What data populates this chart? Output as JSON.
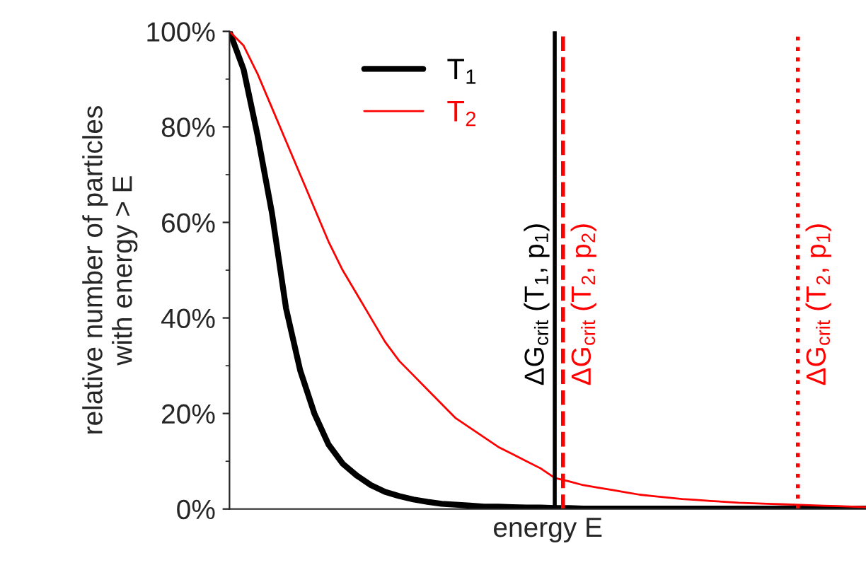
{
  "chart_data": {
    "type": "line",
    "xlabel": "energy E",
    "ylabel": "relative number of particles\nwith energy > E",
    "categories": [
      null,
      null,
      null,
      null,
      null,
      null,
      null,
      null,
      null,
      null,
      null,
      null,
      null,
      null,
      null,
      null,
      null,
      null,
      null,
      null,
      null,
      null,
      null,
      null,
      null,
      null,
      null,
      null,
      null,
      null,
      null,
      null,
      null,
      null,
      null,
      null,
      null,
      null,
      null,
      null,
      null,
      null,
      null,
      null,
      null,
      null
    ],
    "series": [
      {
        "name": "T$_{1}$",
        "color": "#000000",
        "values": [
          100,
          92,
          78,
          62,
          42,
          29,
          20,
          13.5,
          9.5,
          7,
          5,
          3.6,
          2.7,
          2,
          1.5,
          1.1,
          0.9,
          0.7,
          0.5,
          0.5,
          0.4,
          0.3,
          0.3,
          0.2,
          0.2,
          0.1,
          0.1,
          0.1,
          0.1,
          0.1,
          0.1,
          0.1,
          0.1,
          0.1,
          0.1,
          0.1,
          0.1,
          0.1,
          0.1,
          0.1,
          0.1,
          0.1,
          0.1,
          0.1,
          0.1,
          0.1
        ]
      },
      {
        "name": "T$_{2}$",
        "color": "#ff0000",
        "values": [
          100,
          97,
          91,
          84,
          77,
          70,
          63,
          56,
          50,
          45,
          40,
          35,
          31,
          28,
          25,
          22,
          19,
          17,
          15,
          13,
          11.5,
          10,
          8.5,
          6.5,
          5.8,
          5,
          4.5,
          4,
          3.5,
          3,
          2.7,
          2.4,
          2.1,
          1.9,
          1.7,
          1.5,
          1.3,
          1.2,
          1.1,
          1,
          0.9,
          0.8,
          0.7,
          0.6,
          0.5,
          0.4
        ]
      }
    ],
    "ylim": [
      0,
      100
    ],
    "yticks": [
      {
        "value": 0,
        "label": "0%"
      },
      {
        "value": 20,
        "label": "20%"
      },
      {
        "value": 40,
        "label": "40%"
      },
      {
        "value": 60,
        "label": "60%"
      },
      {
        "value": 80,
        "label": "80%"
      },
      {
        "value": 100,
        "label": "100%"
      }
    ],
    "annotations": [
      "ΔG$_{crit}$ (T$_{1}$, p$_{1}$)",
      "ΔG$_{crit}$ (T$_{2}$, p$_{2}$)",
      "ΔG$_{crit}$ (T$_{2}$, p$_{1}$)"
    ],
    "tick_labels": "y",
    "legend": "top left",
    "grid": false,
    "line_style": "solid",
    "marker": "none"
  }
}
